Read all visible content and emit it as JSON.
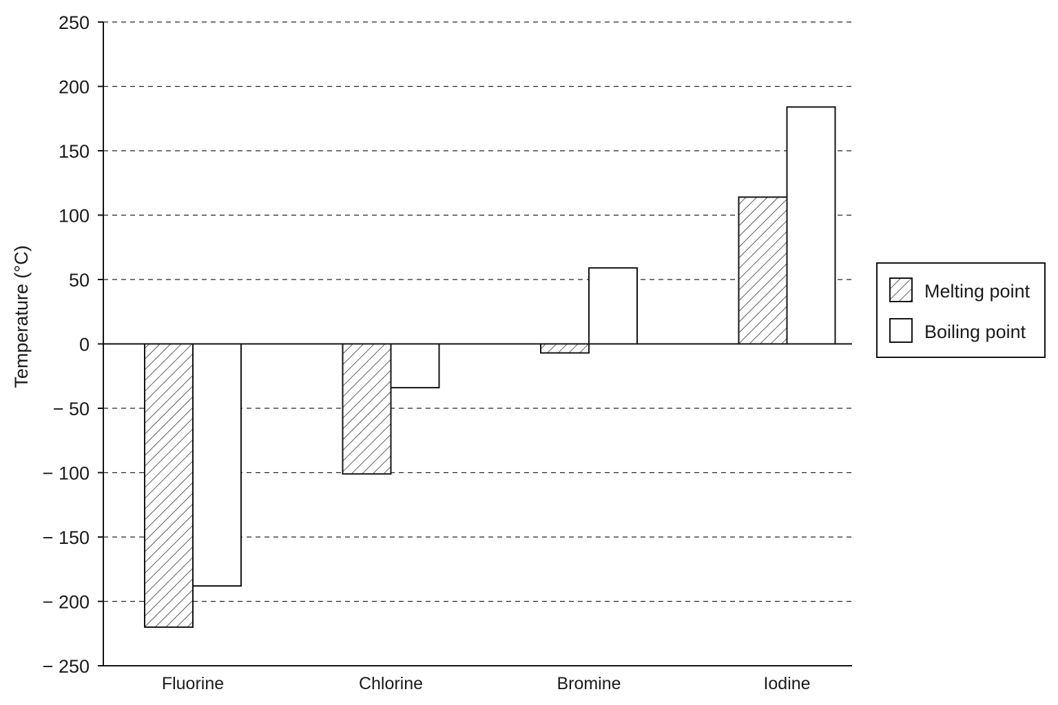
{
  "chart_data": {
    "type": "bar",
    "title": "",
    "xlabel": "",
    "ylabel": "Temperature (°C)",
    "ylim": [
      -250,
      250
    ],
    "yticks": [
      250,
      200,
      150,
      100,
      50,
      0,
      -50,
      -100,
      -150,
      -200,
      -250
    ],
    "ytick_labels": [
      "250",
      "200",
      "150",
      "100",
      "50",
      "0",
      "− 50",
      "− 100",
      "− 150",
      "− 200",
      "− 250"
    ],
    "grid": true,
    "legend_position": "right",
    "categories": [
      "Fluorine",
      "Chlorine",
      "Bromine",
      "Iodine"
    ],
    "series": [
      {
        "name": "Melting point",
        "pattern": "hatched",
        "values": [
          -220,
          -101,
          -7,
          114
        ]
      },
      {
        "name": "Boiling point",
        "pattern": "white",
        "values": [
          -188,
          -34,
          59,
          184
        ]
      }
    ]
  },
  "colors": {
    "stroke": "#111111",
    "hatch": "#333333",
    "background": "#ffffff"
  }
}
